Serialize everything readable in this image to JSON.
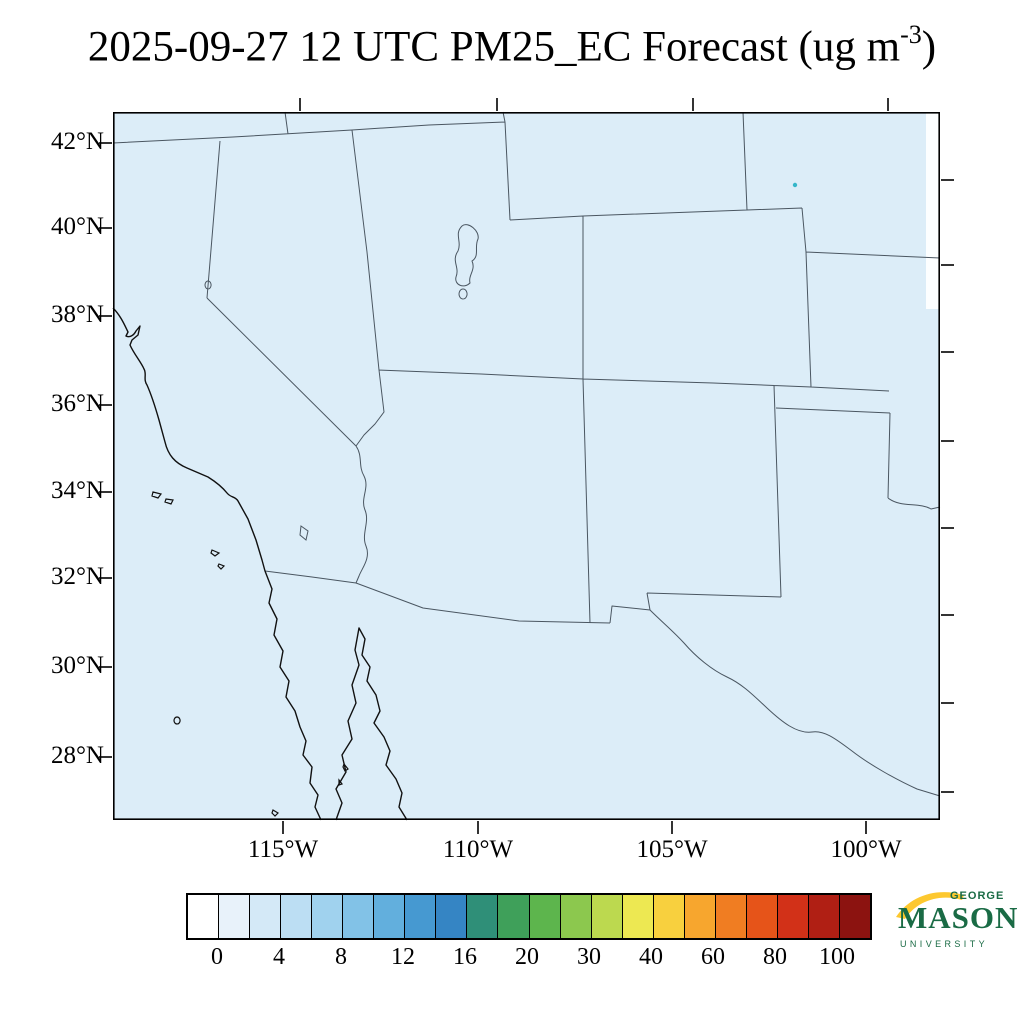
{
  "title": {
    "prefix": "2025-09-27 12 UTC PM25_EC Forecast (ug m",
    "exponent": "-3",
    "suffix": ")"
  },
  "map_axes": {
    "lat_labels": [
      "42°N",
      "40°N",
      "38°N",
      "36°N",
      "34°N",
      "32°N",
      "30°N",
      "28°N"
    ],
    "lon_labels": [
      "115°W",
      "110°W",
      "105°W",
      "100°W"
    ]
  },
  "map": {
    "background_color": "#dcedf8",
    "frame_color": "#000000",
    "state_border_color": "#4a5661",
    "coastline_color": "#111111"
  },
  "colorbar": {
    "tick_labels": [
      "0",
      "4",
      "8",
      "12",
      "16",
      "20",
      "30",
      "40",
      "60",
      "80",
      "100"
    ],
    "colors": [
      "#ffffff",
      "#e8f2fa",
      "#d4e9f7",
      "#bcdef3",
      "#a0d2ee",
      "#82c2e7",
      "#62afdd",
      "#4699d1",
      "#3585c4",
      "#2f8f78",
      "#3fa05a",
      "#5db54d",
      "#8cc84e",
      "#bcd94f",
      "#ede852",
      "#f8d03e",
      "#f7a62e",
      "#f07d22",
      "#e65419",
      "#d23118",
      "#b01f14",
      "#8c1310"
    ]
  },
  "logo": {
    "george": "GEORGE",
    "mason": "MASON",
    "university": "UNIVERSITY",
    "green": "#1a6b45",
    "gold": "#fdc82f"
  }
}
